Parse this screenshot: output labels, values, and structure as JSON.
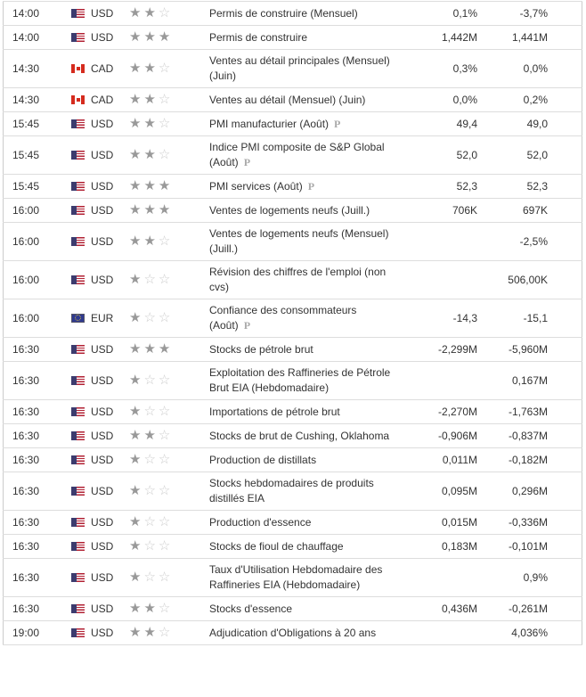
{
  "rows": [
    {
      "time": "14:00",
      "currency": "USD",
      "flag": "us",
      "importance": 2,
      "event": "Permis de construire (Mensuel)",
      "prelim": false,
      "forecast": "0,1%",
      "previous": "-3,7%"
    },
    {
      "time": "14:00",
      "currency": "USD",
      "flag": "us",
      "importance": 3,
      "event": "Permis de construire",
      "prelim": false,
      "forecast": "1,442M",
      "previous": "1,441M"
    },
    {
      "time": "14:30",
      "currency": "CAD",
      "flag": "ca",
      "importance": 2,
      "event": "Ventes au détail principales (Mensuel) (Juin)",
      "prelim": false,
      "forecast": "0,3%",
      "previous": "0,0%"
    },
    {
      "time": "14:30",
      "currency": "CAD",
      "flag": "ca",
      "importance": 2,
      "event": "Ventes au détail (Mensuel) (Juin)",
      "prelim": false,
      "forecast": "0,0%",
      "previous": "0,2%"
    },
    {
      "time": "15:45",
      "currency": "USD",
      "flag": "us",
      "importance": 2,
      "event": "PMI manufacturier (Août)",
      "prelim": true,
      "forecast": "49,4",
      "previous": "49,0"
    },
    {
      "time": "15:45",
      "currency": "USD",
      "flag": "us",
      "importance": 2,
      "event": "Indice PMI composite de S&P Global (Août)",
      "prelim": true,
      "forecast": "52,0",
      "previous": "52,0"
    },
    {
      "time": "15:45",
      "currency": "USD",
      "flag": "us",
      "importance": 3,
      "event": "PMI services (Août)",
      "prelim": true,
      "forecast": "52,3",
      "previous": "52,3"
    },
    {
      "time": "16:00",
      "currency": "USD",
      "flag": "us",
      "importance": 3,
      "event": "Ventes de logements neufs (Juill.)",
      "prelim": false,
      "forecast": "706K",
      "previous": "697K"
    },
    {
      "time": "16:00",
      "currency": "USD",
      "flag": "us",
      "importance": 2,
      "event": "Ventes de logements neufs (Mensuel) (Juill.)",
      "prelim": false,
      "forecast": "",
      "previous": "-2,5%"
    },
    {
      "time": "16:00",
      "currency": "USD",
      "flag": "us",
      "importance": 1,
      "event": "Révision des chiffres de l'emploi (non cvs)",
      "prelim": false,
      "forecast": "",
      "previous": "506,00K"
    },
    {
      "time": "16:00",
      "currency": "EUR",
      "flag": "eu",
      "importance": 1,
      "event": "Confiance des consommateurs (Août)",
      "prelim": true,
      "forecast": "-14,3",
      "previous": "-15,1"
    },
    {
      "time": "16:30",
      "currency": "USD",
      "flag": "us",
      "importance": 3,
      "event": "Stocks de pétrole brut",
      "prelim": false,
      "forecast": "-2,299M",
      "previous": "-5,960M"
    },
    {
      "time": "16:30",
      "currency": "USD",
      "flag": "us",
      "importance": 1,
      "event": "Exploitation des Raffineries de Pétrole Brut EIA (Hebdomadaire)",
      "prelim": false,
      "forecast": "",
      "previous": "0,167M"
    },
    {
      "time": "16:30",
      "currency": "USD",
      "flag": "us",
      "importance": 1,
      "event": "Importations de pétrole brut",
      "prelim": false,
      "forecast": "-2,270M",
      "previous": "-1,763M"
    },
    {
      "time": "16:30",
      "currency": "USD",
      "flag": "us",
      "importance": 2,
      "event": "Stocks de brut de Cushing, Oklahoma",
      "prelim": false,
      "forecast": "-0,906M",
      "previous": "-0,837M"
    },
    {
      "time": "16:30",
      "currency": "USD",
      "flag": "us",
      "importance": 1,
      "event": "Production de distillats",
      "prelim": false,
      "forecast": "0,011M",
      "previous": "-0,182M"
    },
    {
      "time": "16:30",
      "currency": "USD",
      "flag": "us",
      "importance": 1,
      "event": "Stocks hebdomadaires de produits distillés EIA",
      "prelim": false,
      "forecast": "0,095M",
      "previous": "0,296M"
    },
    {
      "time": "16:30",
      "currency": "USD",
      "flag": "us",
      "importance": 1,
      "event": "Production d'essence",
      "prelim": false,
      "forecast": "0,015M",
      "previous": "-0,336M"
    },
    {
      "time": "16:30",
      "currency": "USD",
      "flag": "us",
      "importance": 1,
      "event": "Stocks de fioul de chauffage",
      "prelim": false,
      "forecast": "0,183M",
      "previous": "-0,101M"
    },
    {
      "time": "16:30",
      "currency": "USD",
      "flag": "us",
      "importance": 1,
      "event": "Taux d'Utilisation Hebdomadaire des Raffineries EIA (Hebdomadaire)",
      "prelim": false,
      "forecast": "",
      "previous": "0,9%"
    },
    {
      "time": "16:30",
      "currency": "USD",
      "flag": "us",
      "importance": 2,
      "event": "Stocks d'essence",
      "prelim": false,
      "forecast": "0,436M",
      "previous": "-0,261M"
    },
    {
      "time": "19:00",
      "currency": "USD",
      "flag": "us",
      "importance": 2,
      "event": "Adjudication d'Obligations à 20 ans",
      "prelim": false,
      "forecast": "",
      "previous": "4,036%"
    }
  ],
  "prelim_marker": "P",
  "colors": {
    "star_on": "#999999",
    "star_off": "#cccccc",
    "text": "#333333",
    "border": "#dddddd"
  }
}
